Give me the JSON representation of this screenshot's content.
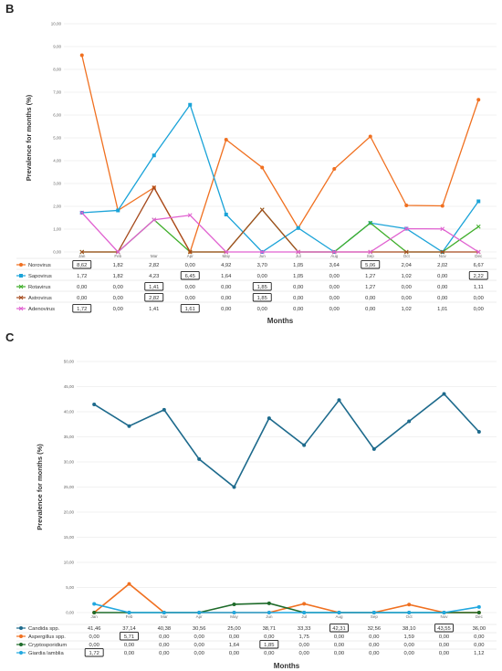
{
  "panels": {
    "b_label": "B",
    "c_label": "C"
  },
  "chart_data": [
    {
      "type": "line",
      "panel": "B",
      "title": "",
      "xlabel": "Months",
      "ylabel": "Prevalence for months (%)",
      "ylim": [
        0,
        10
      ],
      "ytick_values": [
        0,
        1,
        2,
        3,
        4,
        5,
        6,
        7,
        8,
        9,
        10
      ],
      "ytick_labels": [
        "0,00",
        "1,00",
        "2,00",
        "3,00",
        "4,00",
        "5,00",
        "6,00",
        "7,00",
        "8,00",
        "9,00",
        "10,00"
      ],
      "grid": true,
      "legend": "table-below",
      "categories": [
        "Jan",
        "Feb",
        "Mar",
        "Apr",
        "May",
        "Jun",
        "Jul",
        "Aug",
        "Sep",
        "Oct",
        "Nov",
        "Dec"
      ],
      "series": [
        {
          "name": "Norovirus",
          "color": "#f07020",
          "marker": "circle",
          "values": [
            8.62,
            1.82,
            2.82,
            0.0,
            4.92,
            3.7,
            1.05,
            3.64,
            5.06,
            2.04,
            2.02,
            6.67
          ],
          "labels": [
            "8,62",
            "1,82",
            "2,82",
            "0,00",
            "4,92",
            "3,70",
            "1,05",
            "3,64",
            "5,06",
            "2,04",
            "2,02",
            "6,67"
          ],
          "highlight": [
            0,
            8
          ]
        },
        {
          "name": "Sapovirus",
          "color": "#1aa3d8",
          "marker": "square",
          "values": [
            1.72,
            1.82,
            4.23,
            6.45,
            1.64,
            0.0,
            1.05,
            0.0,
            1.27,
            1.02,
            0.0,
            2.22
          ],
          "labels": [
            "1,72",
            "1,82",
            "4,23",
            "6,45",
            "1,64",
            "0,00",
            "1,05",
            "0,00",
            "1,27",
            "1,02",
            "0,00",
            "2,22"
          ],
          "highlight": [
            3,
            11
          ]
        },
        {
          "name": "Rotavirus",
          "color": "#3fae2a",
          "marker": "x",
          "values": [
            0.0,
            0.0,
            1.41,
            0.0,
            0.0,
            1.85,
            0.0,
            0.0,
            1.27,
            0.0,
            0.0,
            1.11
          ],
          "labels": [
            "0,00",
            "0,00",
            "1,41",
            "0,00",
            "0,00",
            "1,85",
            "0,00",
            "0,00",
            "1,27",
            "0,00",
            "0,00",
            "1,11"
          ],
          "highlight": [
            2,
            5
          ]
        },
        {
          "name": "Astrovirus",
          "color": "#a64b1e",
          "marker": "x",
          "values": [
            0.0,
            0.0,
            2.82,
            0.0,
            0.0,
            1.85,
            0.0,
            0.0,
            0.0,
            0.0,
            0.0,
            0.0
          ],
          "labels": [
            "0,00",
            "0,00",
            "2,82",
            "0,00",
            "0,00",
            "1,85",
            "0,00",
            "0,00",
            "0,00",
            "0,00",
            "0,00",
            "0,00"
          ],
          "highlight": [
            2,
            5
          ]
        },
        {
          "name": "Adenovirus",
          "color": "#e060d0",
          "marker": "x",
          "values": [
            1.72,
            0.0,
            1.41,
            1.61,
            0.0,
            0.0,
            0.0,
            0.0,
            0.0,
            1.02,
            1.01,
            0.0
          ],
          "labels": [
            "1,72",
            "0,00",
            "1,41",
            "1,61",
            "0,00",
            "0,00",
            "0,00",
            "0,00",
            "0,00",
            "1,02",
            "1,01",
            "0,00"
          ],
          "highlight": [
            0,
            3
          ]
        }
      ]
    },
    {
      "type": "line",
      "panel": "C",
      "title": "",
      "xlabel": "Months",
      "ylabel": "Prevalence for months (%)",
      "ylim": [
        0,
        50
      ],
      "ytick_values": [
        0,
        5,
        10,
        15,
        20,
        25,
        30,
        35,
        40,
        45,
        50
      ],
      "ytick_labels": [
        "0,00",
        "5,00",
        "10,00",
        "15,00",
        "20,00",
        "25,00",
        "30,00",
        "35,00",
        "40,00",
        "45,00",
        "50,00"
      ],
      "grid": true,
      "legend": "table-below",
      "categories": [
        "Jan",
        "Feb",
        "Mar",
        "Apr",
        "May",
        "Jun",
        "Jul",
        "Aug",
        "Sep",
        "Oct",
        "Nov",
        "Dec"
      ],
      "series": [
        {
          "name": "Candida spp.",
          "color": "#1d6a8c",
          "marker": "circle",
          "values": [
            41.46,
            37.14,
            40.38,
            30.56,
            25.0,
            38.71,
            33.33,
            42.31,
            32.56,
            38.1,
            43.55,
            36.0
          ],
          "labels": [
            "41,46",
            "37,14",
            "40,38",
            "30,56",
            "25,00",
            "38,71",
            "33,33",
            "42,31",
            "32,56",
            "38,10",
            "43,55",
            "36,00"
          ],
          "highlight": [
            7,
            10
          ]
        },
        {
          "name": "Aspergillus spp.",
          "color": "#f07020",
          "marker": "circle",
          "values": [
            0.0,
            5.71,
            0.0,
            0.0,
            0.0,
            0.0,
            1.75,
            0.0,
            0.0,
            1.59,
            0.0,
            0.0
          ],
          "labels": [
            "0,00",
            "5,71",
            "0,00",
            "0,00",
            "0,00",
            "0,00",
            "1,75",
            "0,00",
            "0,00",
            "1,59",
            "0,00",
            "0,00"
          ],
          "highlight": [
            1
          ]
        },
        {
          "name": "Cryptosporidium",
          "color": "#1e6b2a",
          "marker": "circle",
          "values": [
            0.0,
            0.0,
            0.0,
            0.0,
            1.64,
            1.85,
            0.0,
            0.0,
            0.0,
            0.0,
            0.0,
            0.0
          ],
          "labels": [
            "0,00",
            "0,00",
            "0,00",
            "0,00",
            "1,64",
            "1,85",
            "0,00",
            "0,00",
            "0,00",
            "0,00",
            "0,00",
            "0,00"
          ],
          "highlight": [
            5
          ]
        },
        {
          "name": "Giardia lamblia",
          "color": "#22a8e0",
          "marker": "circle",
          "values": [
            1.72,
            0.0,
            0.0,
            0.0,
            0.0,
            0.0,
            0.0,
            0.0,
            0.0,
            0.0,
            0.0,
            1.12
          ],
          "labels": [
            "1,72",
            "0,00",
            "0,00",
            "0,00",
            "0,00",
            "0,00",
            "0,00",
            "0,00",
            "0,00",
            "0,00",
            "0,00",
            "1,12"
          ],
          "highlight": [
            0
          ]
        }
      ]
    }
  ]
}
